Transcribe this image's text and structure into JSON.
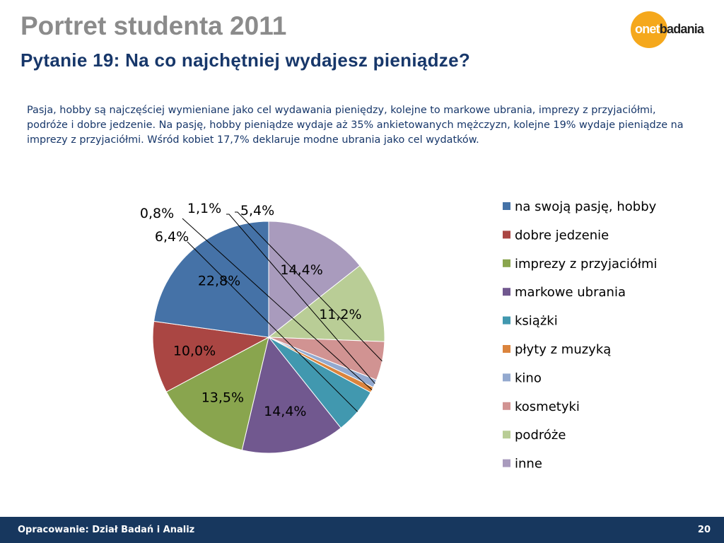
{
  "header": {
    "title": "Portret studenta 2011",
    "subtitle": "Pytanie 19: Na co najchętniej wydajesz pieniądze?"
  },
  "logo": {
    "part1": "onet",
    "part2": "badania"
  },
  "description": "Pasja, hobby są najczęściej wymieniane jako cel wydawania pieniędzy, kolejne to markowe ubrania, imprezy z przyjaciółmi, podróże i dobre jedzenie. Na pasję, hobby pieniądze wydaje aż 35% ankietowanych mężczyzn, kolejne 19% wydaje pieniądze na imprezy z przyjaciółmi. Wśród kobiet 17,7% deklaruje modne ubrania jako cel wydatków.",
  "chart_data": {
    "type": "pie",
    "categories": [
      "na swoją pasję, hobby",
      "dobre jedzenie",
      "imprezy z przyjaciółmi",
      "markowe ubrania",
      "książki",
      "płyty z muzyką",
      "kino",
      "kosmetyki",
      "podróże",
      "inne"
    ],
    "values": [
      22.8,
      10.0,
      13.5,
      14.4,
      6.4,
      0.8,
      1.1,
      5.4,
      11.2,
      14.4
    ],
    "labels": [
      "22,8%",
      "10,0%",
      "13,5%",
      "14,4%",
      "6,4%",
      "0,8%",
      "1,1%",
      "5,4%",
      "11,2%",
      "14,4%"
    ],
    "colors": [
      "#4572a7",
      "#aa4643",
      "#89a54e",
      "#71588f",
      "#4198af",
      "#db843d",
      "#93a9cf",
      "#d19392",
      "#b9cd96",
      "#a99bbd"
    ],
    "legend_position": "right",
    "start": "top, counter-clockwise from inne",
    "unit": "%"
  },
  "footer": {
    "source": "Opracowanie: Dział Badań i Analiz",
    "page": "20"
  }
}
